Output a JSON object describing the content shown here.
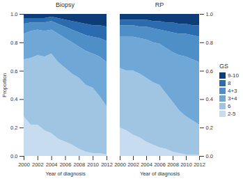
{
  "chart_data": [
    {
      "type": "area",
      "title": "Biopsy",
      "stacked": true,
      "ylabel": "Proportion",
      "xlabel": "Year of diagnosis",
      "x": [
        2000,
        2001,
        2002,
        2003,
        2004,
        2005,
        2006,
        2007,
        2008,
        2009,
        2010,
        2011,
        2012
      ],
      "xlim": [
        2000,
        2012
      ],
      "xticks": [
        2000,
        2002,
        2004,
        2006,
        2008,
        2010,
        2012
      ],
      "ylim": [
        0,
        1
      ],
      "yticks": [
        {
          "value": 0,
          "label": "0.0"
        },
        {
          "value": 0.2,
          "label": "0.2"
        },
        {
          "value": 0.4,
          "label": "0.4"
        },
        {
          "value": 0.6,
          "label": "0.6"
        },
        {
          "value": 0.8,
          "label": "0.8"
        },
        {
          "value": 1,
          "label": "1.0"
        }
      ],
      "series": [
        {
          "name": "2-5",
          "color": "#c7dcef",
          "values": [
            0.28,
            0.22,
            0.22,
            0.18,
            0.16,
            0.12,
            0.1,
            0.08,
            0.05,
            0.03,
            0.02,
            0.02,
            0.01
          ]
        },
        {
          "name": "6",
          "color": "#9fc5e3",
          "values": [
            0.4,
            0.47,
            0.49,
            0.52,
            0.56,
            0.54,
            0.52,
            0.5,
            0.5,
            0.47,
            0.46,
            0.4,
            0.34
          ]
        },
        {
          "name": "3+4",
          "color": "#6fa8d6",
          "values": [
            0.18,
            0.19,
            0.18,
            0.18,
            0.17,
            0.2,
            0.21,
            0.22,
            0.22,
            0.24,
            0.24,
            0.28,
            0.31
          ]
        },
        {
          "name": "4+3",
          "color": "#4f8fc7",
          "values": [
            0.07,
            0.06,
            0.05,
            0.06,
            0.06,
            0.07,
            0.08,
            0.09,
            0.1,
            0.11,
            0.12,
            0.13,
            0.15
          ]
        },
        {
          "name": "8",
          "color": "#2b6cb0",
          "values": [
            0.04,
            0.03,
            0.03,
            0.03,
            0.03,
            0.04,
            0.05,
            0.06,
            0.07,
            0.08,
            0.08,
            0.09,
            0.1
          ]
        },
        {
          "name": "9-10",
          "color": "#0d3d78",
          "values": [
            0.03,
            0.03,
            0.03,
            0.03,
            0.02,
            0.03,
            0.04,
            0.05,
            0.06,
            0.07,
            0.08,
            0.08,
            0.09
          ]
        }
      ]
    },
    {
      "type": "area",
      "title": "RP",
      "stacked": true,
      "xlabel": "Year of diagnosis",
      "legend": "right",
      "legend_title": "GS",
      "x": [
        2000,
        2001,
        2002,
        2003,
        2004,
        2005,
        2006,
        2007,
        2008,
        2009,
        2010,
        2011,
        2012
      ],
      "xlim": [
        2000,
        2012
      ],
      "xticks": [
        2000,
        2002,
        2004,
        2006,
        2008,
        2010,
        2012
      ],
      "ylim": [
        0,
        1
      ],
      "yticks": [
        {
          "value": 0,
          "label": "0.0"
        },
        {
          "value": 0.2,
          "label": "0.2"
        },
        {
          "value": 0.4,
          "label": "0.4"
        },
        {
          "value": 0.6,
          "label": "0.6"
        },
        {
          "value": 0.8,
          "label": "0.8"
        },
        {
          "value": 1,
          "label": "1.0"
        }
      ],
      "series": [
        {
          "name": "2-5",
          "color": "#c7dcef",
          "values": [
            0.2,
            0.18,
            0.15,
            0.13,
            0.1,
            0.08,
            0.06,
            0.05,
            0.03,
            0.02,
            0.01,
            0.01,
            0.01
          ]
        },
        {
          "name": "6",
          "color": "#9fc5e3",
          "values": [
            0.42,
            0.42,
            0.45,
            0.45,
            0.45,
            0.44,
            0.44,
            0.39,
            0.35,
            0.3,
            0.27,
            0.24,
            0.21
          ]
        },
        {
          "name": "3+4",
          "color": "#6fa8d6",
          "values": [
            0.22,
            0.24,
            0.24,
            0.25,
            0.27,
            0.28,
            0.29,
            0.32,
            0.35,
            0.39,
            0.42,
            0.43,
            0.44
          ]
        },
        {
          "name": "4+3",
          "color": "#4f8fc7",
          "values": [
            0.08,
            0.08,
            0.08,
            0.08,
            0.09,
            0.1,
            0.1,
            0.12,
            0.14,
            0.15,
            0.16,
            0.17,
            0.18
          ]
        },
        {
          "name": "8",
          "color": "#2b6cb0",
          "values": [
            0.04,
            0.04,
            0.04,
            0.05,
            0.05,
            0.05,
            0.06,
            0.06,
            0.07,
            0.07,
            0.07,
            0.07,
            0.08
          ]
        },
        {
          "name": "9-10",
          "color": "#0d3d78",
          "values": [
            0.04,
            0.04,
            0.04,
            0.04,
            0.04,
            0.05,
            0.05,
            0.06,
            0.06,
            0.07,
            0.07,
            0.08,
            0.08
          ]
        }
      ]
    }
  ]
}
